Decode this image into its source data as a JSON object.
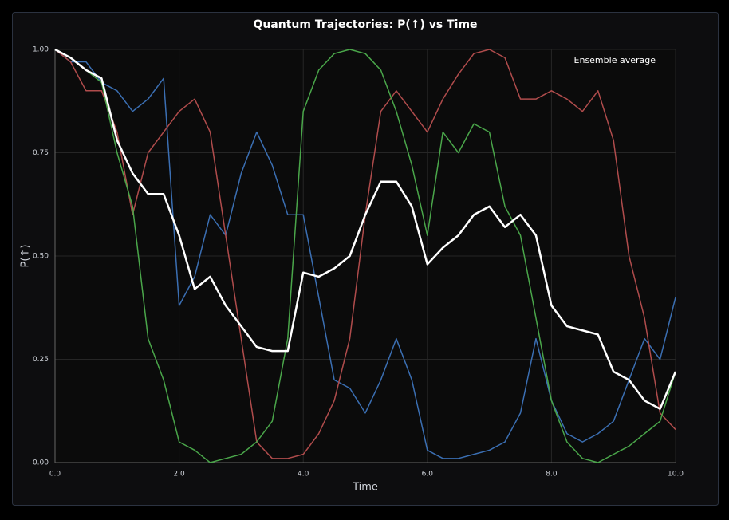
{
  "chart_data": {
    "type": "line",
    "title": "Quantum Trajectories: P(↑) vs Time",
    "x_label": "Time",
    "y_label": "P(↑)",
    "x": [
      0,
      0.25,
      0.5,
      0.75,
      1,
      1.25,
      1.5,
      1.75,
      2,
      2.25,
      2.5,
      2.75,
      3,
      3.25,
      3.5,
      3.75,
      4,
      4.25,
      4.5,
      4.75,
      5,
      5.25,
      5.5,
      5.75,
      6,
      6.25,
      6.5,
      6.75,
      7,
      7.25,
      7.5,
      7.75,
      8,
      8.25,
      8.5,
      8.75,
      9,
      9.25,
      9.5,
      9.75,
      10
    ],
    "series": [
      {
        "color": "#3b6fb3",
        "values": [
          1.0,
          0.97,
          0.97,
          0.92,
          0.9,
          0.85,
          0.88,
          0.93,
          0.38,
          0.45,
          0.6,
          0.55,
          0.7,
          0.8,
          0.72,
          0.6,
          0.6,
          0.4,
          0.2,
          0.18,
          0.12,
          0.2,
          0.3,
          0.2,
          0.03,
          0.01,
          0.01,
          0.02,
          0.03,
          0.05,
          0.12,
          0.3,
          0.15,
          0.07,
          0.05,
          0.07,
          0.1,
          0.2,
          0.3,
          0.25,
          0.4
        ]
      },
      {
        "color": "#b04c4c",
        "values": [
          1.0,
          0.97,
          0.9,
          0.9,
          0.8,
          0.6,
          0.75,
          0.8,
          0.85,
          0.88,
          0.8,
          0.55,
          0.3,
          0.05,
          0.01,
          0.01,
          0.02,
          0.07,
          0.15,
          0.3,
          0.6,
          0.85,
          0.9,
          0.85,
          0.8,
          0.88,
          0.94,
          0.99,
          1.0,
          0.98,
          0.88,
          0.88,
          0.9,
          0.88,
          0.85,
          0.9,
          0.78,
          0.5,
          0.35,
          0.12,
          0.08
        ]
      },
      {
        "color": "#4aa64a",
        "values": [
          1.0,
          0.98,
          0.95,
          0.92,
          0.75,
          0.62,
          0.3,
          0.2,
          0.05,
          0.03,
          0.0,
          0.01,
          0.02,
          0.05,
          0.1,
          0.3,
          0.85,
          0.95,
          0.99,
          1.0,
          0.99,
          0.95,
          0.85,
          0.72,
          0.55,
          0.8,
          0.75,
          0.82,
          0.8,
          0.62,
          0.55,
          0.35,
          0.15,
          0.05,
          0.01,
          0.0,
          0.02,
          0.04,
          0.07,
          0.1,
          0.22
        ]
      },
      {
        "name": "Ensemble average",
        "color": "#ffffff",
        "values": [
          1.0,
          0.98,
          0.95,
          0.93,
          0.78,
          0.7,
          0.65,
          0.65,
          0.55,
          0.42,
          0.45,
          0.38,
          0.33,
          0.28,
          0.27,
          0.27,
          0.46,
          0.45,
          0.47,
          0.5,
          0.6,
          0.68,
          0.68,
          0.62,
          0.48,
          0.52,
          0.55,
          0.6,
          0.62,
          0.57,
          0.6,
          0.55,
          0.38,
          0.33,
          0.32,
          0.31,
          0.22,
          0.2,
          0.15,
          0.13,
          0.22
        ]
      }
    ],
    "xlim": [
      0,
      10
    ],
    "ylim": [
      0,
      1
    ],
    "xticks": [
      {
        "value": 0,
        "label": "0.0"
      },
      {
        "value": 2,
        "label": "2.0"
      },
      {
        "value": 4,
        "label": "4.0"
      },
      {
        "value": 6,
        "label": "6.0"
      },
      {
        "value": 8,
        "label": "8.0"
      },
      {
        "value": 10,
        "label": "10.0"
      }
    ],
    "yticks": [
      {
        "value": 0,
        "label": "0.00"
      },
      {
        "value": 0.25,
        "label": "0.25"
      },
      {
        "value": 0.5,
        "label": "0.50"
      },
      {
        "value": 0.75,
        "label": "0.75"
      },
      {
        "value": 1,
        "label": "1.00"
      }
    ],
    "grid": true,
    "legend": "upper right"
  }
}
